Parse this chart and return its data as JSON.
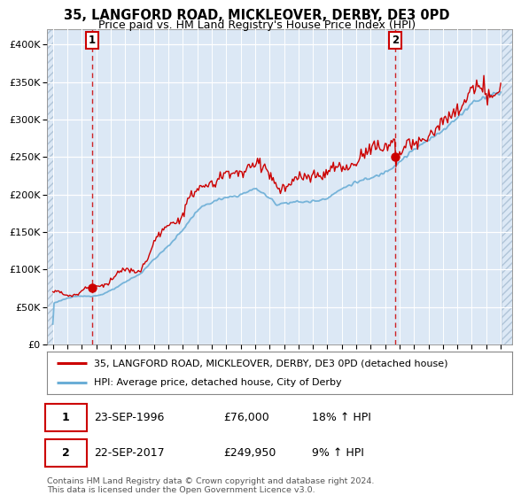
{
  "title": "35, LANGFORD ROAD, MICKLEOVER, DERBY, DE3 0PD",
  "subtitle": "Price paid vs. HM Land Registry's House Price Index (HPI)",
  "xlim_left": 1993.6,
  "xlim_right": 2025.8,
  "ylim_bottom": 0,
  "ylim_top": 420000,
  "yticks": [
    0,
    50000,
    100000,
    150000,
    200000,
    250000,
    300000,
    350000,
    400000
  ],
  "ytick_labels": [
    "£0",
    "£50K",
    "£100K",
    "£150K",
    "£200K",
    "£250K",
    "£300K",
    "£350K",
    "£400K"
  ],
  "transaction1_year": 1996.72,
  "transaction1_price": 76000,
  "transaction2_year": 2017.72,
  "transaction2_price": 249950,
  "hpi_color": "#6baed6",
  "price_color": "#cc0000",
  "legend_label_price": "35, LANGFORD ROAD, MICKLEOVER, DERBY, DE3 0PD (detached house)",
  "legend_label_hpi": "HPI: Average price, detached house, City of Derby",
  "annotation1_date": "23-SEP-1996",
  "annotation1_price": "£76,000",
  "annotation1_hpi": "18% ↑ HPI",
  "annotation2_date": "22-SEP-2017",
  "annotation2_price": "£249,950",
  "annotation2_hpi": "9% ↑ HPI",
  "footer": "Contains HM Land Registry data © Crown copyright and database right 2024.\nThis data is licensed under the Open Government Licence v3.0.",
  "background_color": "#ffffff",
  "plot_bg_color": "#dce8f5"
}
